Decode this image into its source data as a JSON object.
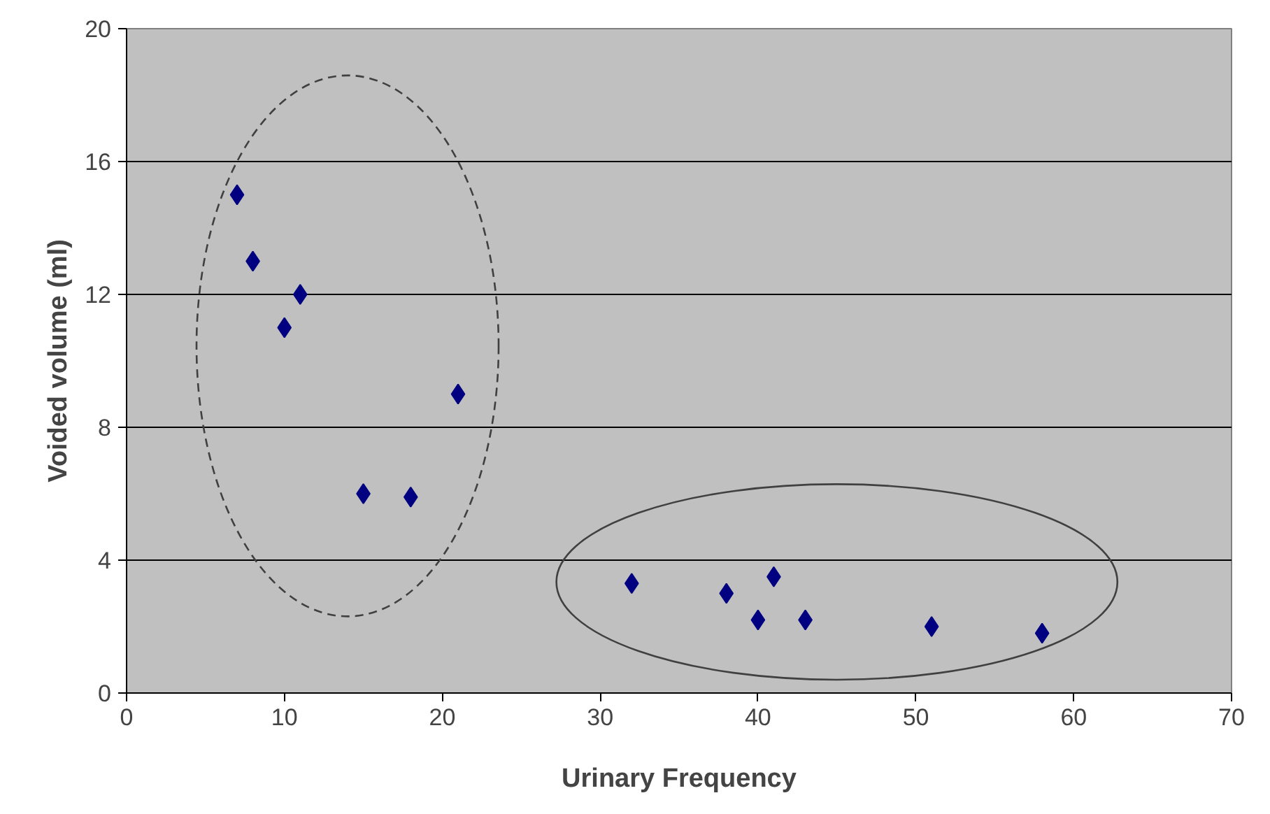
{
  "chart_data": {
    "type": "scatter",
    "xlabel": "Urinary Frequency",
    "ylabel": "Voided volume (ml)",
    "xlim": [
      0,
      70
    ],
    "xticks": [
      0,
      10,
      20,
      30,
      40,
      50,
      60,
      70
    ],
    "ylim": [
      0,
      20
    ],
    "yticks": [
      0,
      4,
      8,
      12,
      16,
      20
    ],
    "grid": "y",
    "marker": "diamond",
    "series": [
      {
        "color": "#000080",
        "line_style": "dashed",
        "x": [
          7,
          8,
          10,
          11,
          15,
          18,
          21
        ],
        "values": [
          15,
          13,
          11,
          12,
          6,
          5.9,
          9
        ]
      },
      {
        "color": "#000080",
        "line_style": "solid",
        "x": [
          32,
          38,
          40,
          41,
          43,
          51,
          58
        ],
        "values": [
          3.3,
          3,
          2.2,
          3.5,
          2.2,
          2,
          1.8
        ]
      }
    ]
  }
}
